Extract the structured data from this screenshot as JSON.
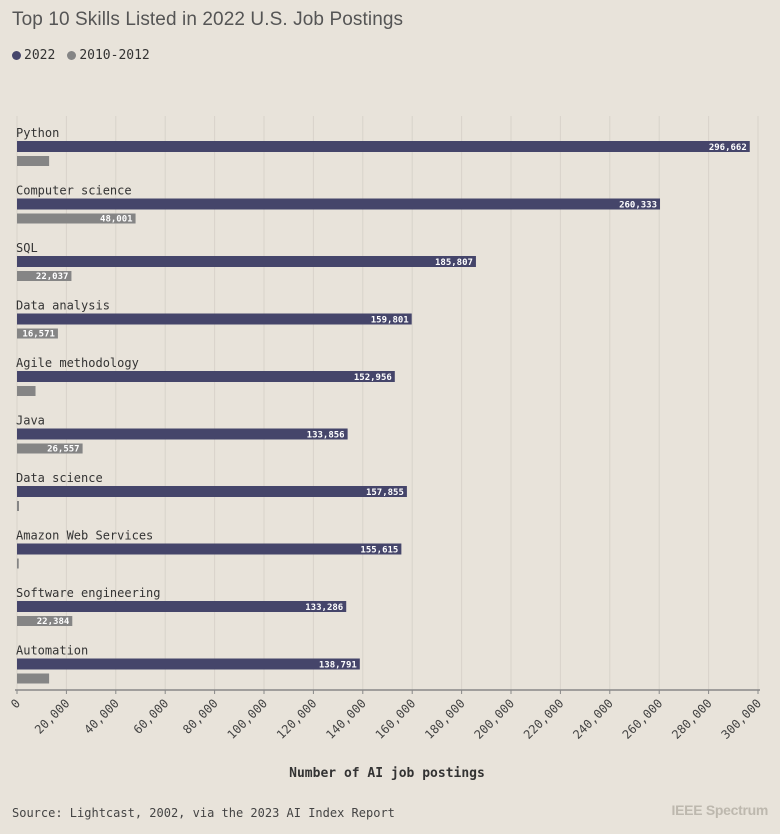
{
  "title": "Top 10 Skills Listed in 2022 U.S. Job Postings",
  "source": "Source: Lightcast, 2002, via the 2023 AI Index Report",
  "brand": "IEEE Spectrum",
  "colors": {
    "series_2022": "#45456a",
    "series_2010": "#858585",
    "background": "#e8e3da",
    "grid": "#d8d3ca",
    "axis": "#888888"
  },
  "chart_data": {
    "type": "bar",
    "orientation": "horizontal",
    "title": "Top 10 Skills Listed in 2022 U.S. Job Postings",
    "xlabel": "Number of AI job postings",
    "ylabel": "",
    "xlim": [
      0,
      300000
    ],
    "xticks": [
      0,
      20000,
      40000,
      60000,
      80000,
      100000,
      120000,
      140000,
      160000,
      180000,
      200000,
      220000,
      240000,
      260000,
      280000,
      300000
    ],
    "xtick_labels": [
      "0",
      "20,000",
      "40,000",
      "60,000",
      "80,000",
      "100,000",
      "120,000",
      "140,000",
      "160,000",
      "180,000",
      "200,000",
      "220,000",
      "240,000",
      "260,000",
      "280,000",
      "300,000"
    ],
    "grid": true,
    "legend_position": "top-left",
    "categories": [
      "Python",
      "Computer science",
      "SQL",
      "Data analysis",
      "Agile methodology",
      "Java",
      "Data science",
      "Amazon Web Services",
      "Software engineering",
      "Automation"
    ],
    "series": [
      {
        "name": "2022",
        "color": "#45456a",
        "values": [
          296662,
          260333,
          185807,
          159801,
          152956,
          133856,
          157855,
          155615,
          133286,
          138791
        ],
        "labels": [
          "296,662",
          "260,333",
          "185,807",
          "159,801",
          "152,956",
          "133,856",
          "157,855",
          "155,615",
          "133,286",
          "138,791"
        ]
      },
      {
        "name": "2010-2012",
        "color": "#858585",
        "values": [
          13000,
          48001,
          22037,
          16571,
          7500,
          26557,
          800,
          700,
          22384,
          13000
        ],
        "labels": [
          "",
          "48,001",
          "22,037",
          "16,571",
          "",
          "26,557",
          "",
          "",
          "22,384",
          ""
        ]
      }
    ]
  }
}
